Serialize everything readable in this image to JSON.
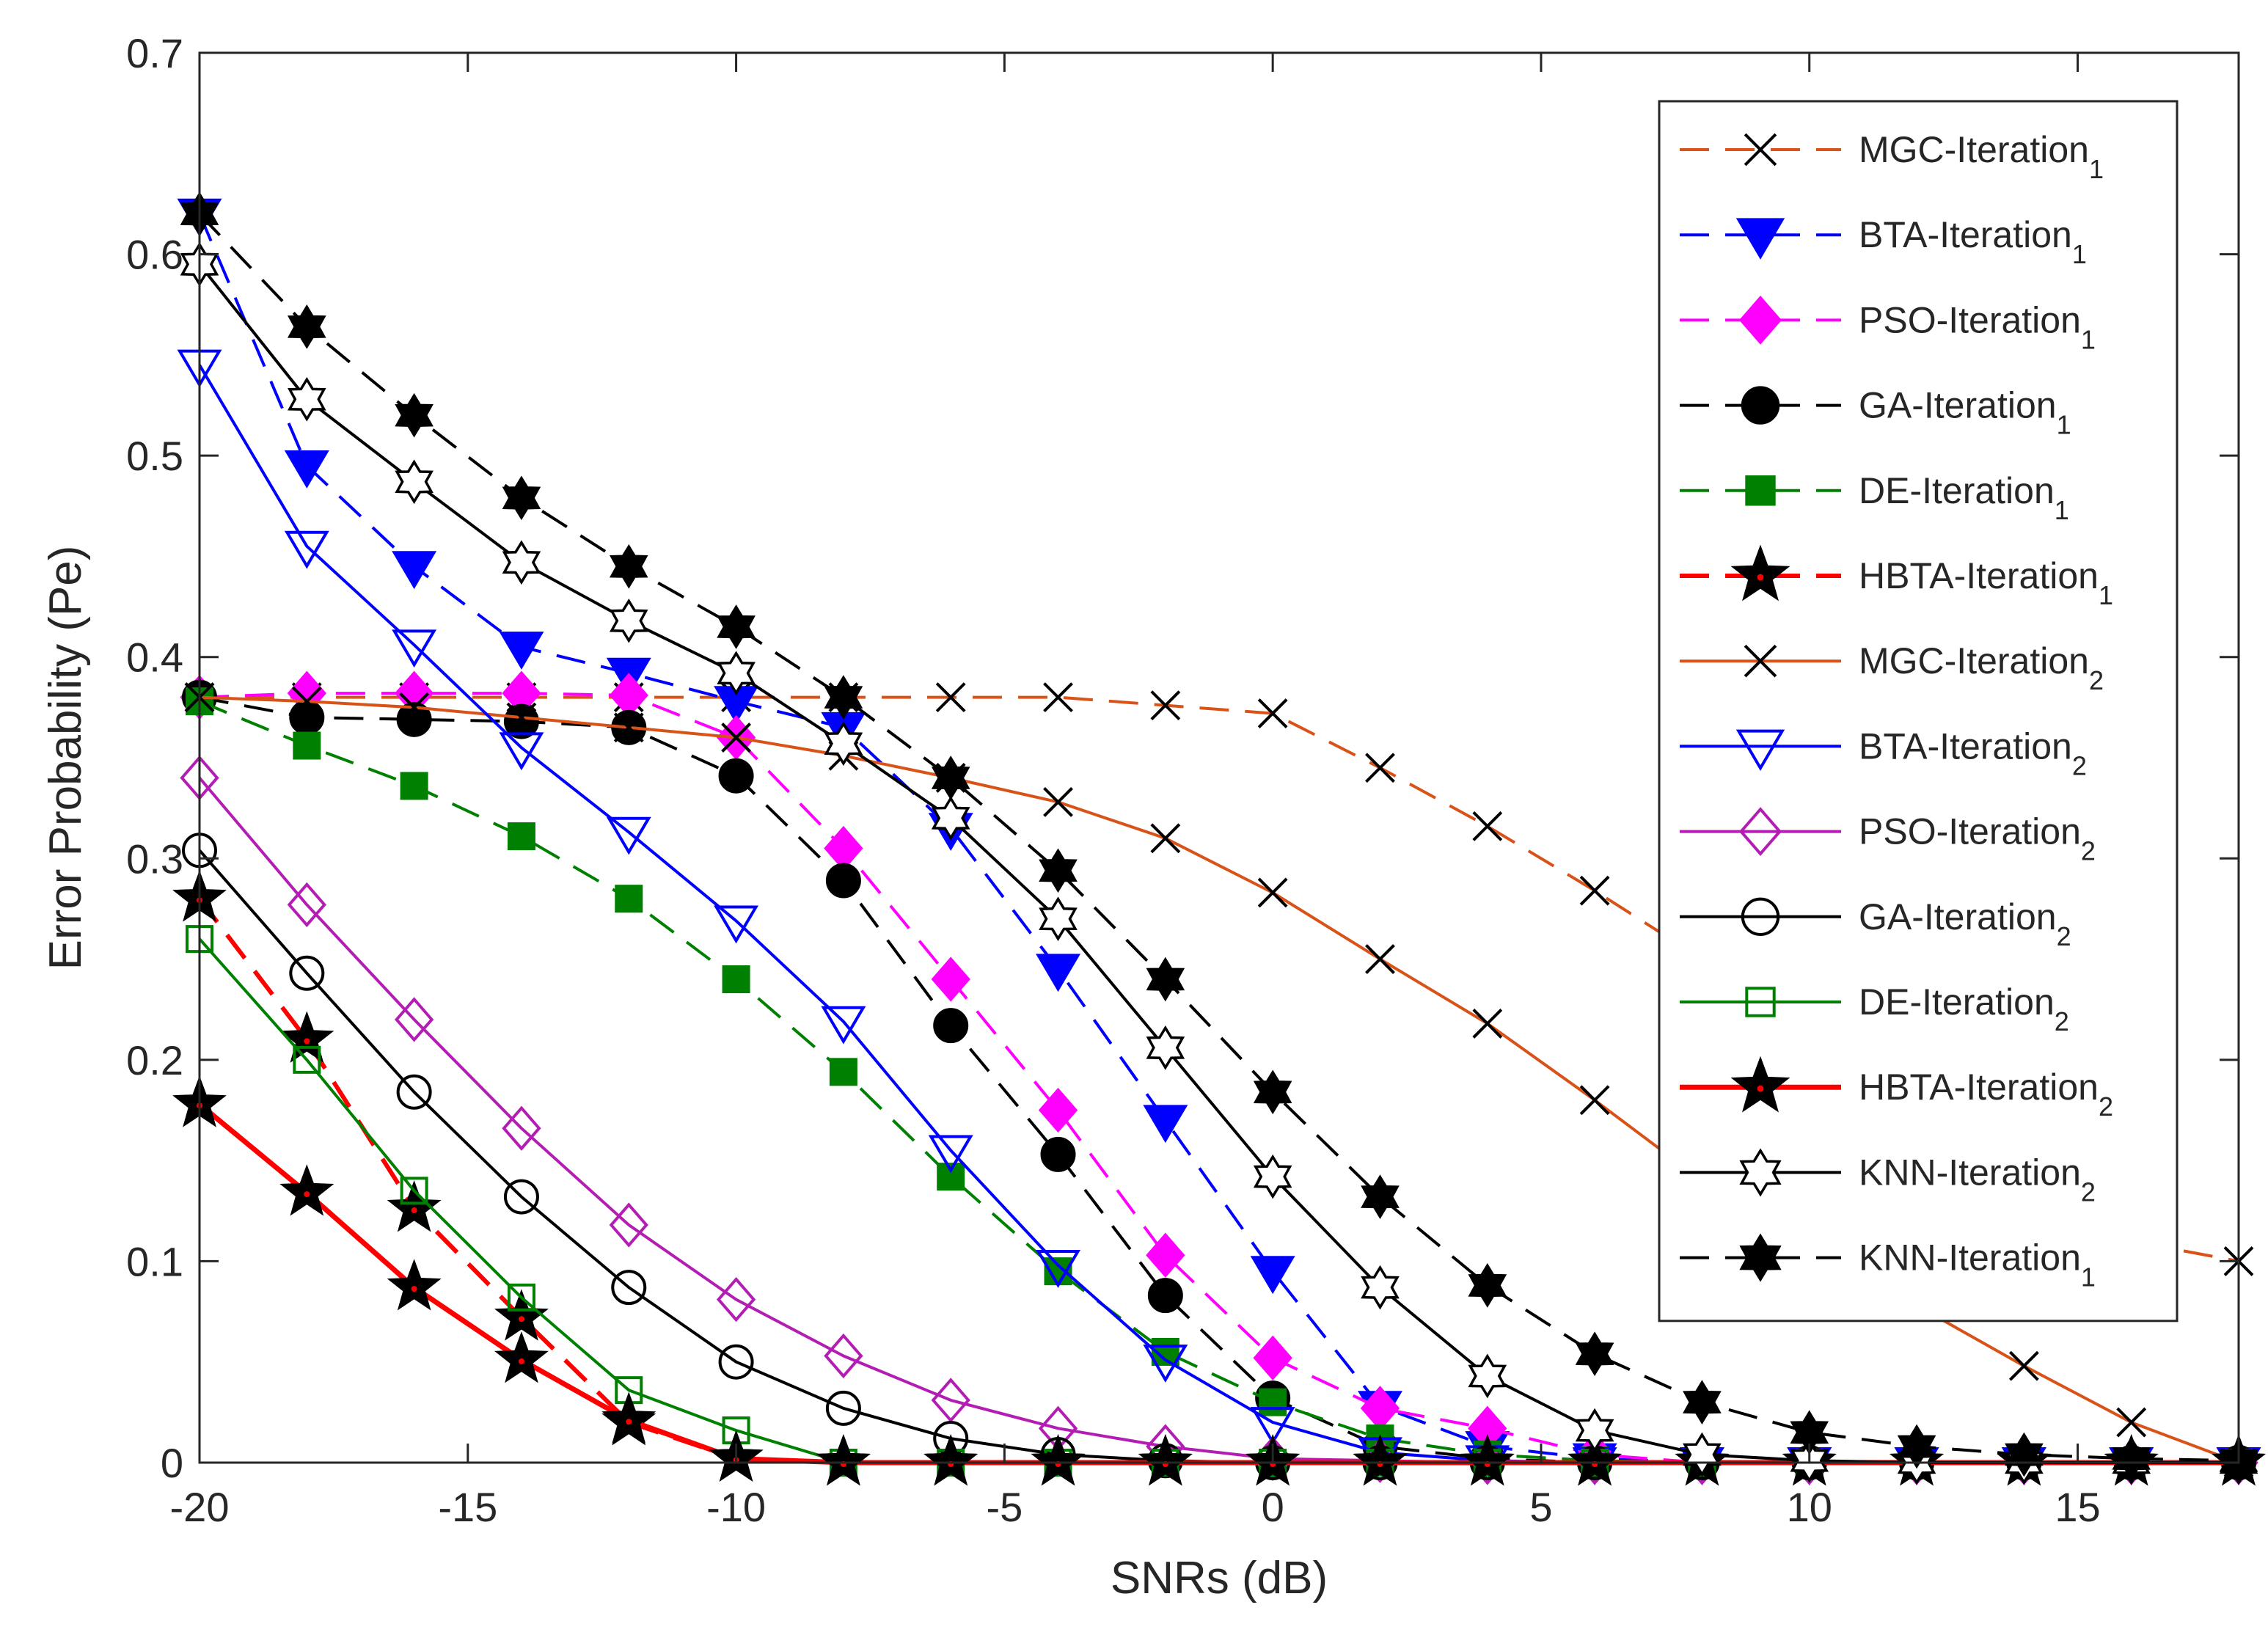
{
  "chart_data": {
    "type": "line",
    "xlabel": "SNRs (dB)",
    "ylabel": "Error Probability (Pe)",
    "xlim": [
      -20,
      18
    ],
    "ylim": [
      0,
      0.7
    ],
    "xticks": [
      -20,
      -15,
      -10,
      -5,
      0,
      5,
      10,
      15
    ],
    "xtick_labels": [
      "-20",
      "-15",
      "-10",
      "-5",
      "0",
      "5",
      "10",
      "15"
    ],
    "yticks": [
      0,
      0.1,
      0.2,
      0.3,
      0.4,
      0.5,
      0.6,
      0.7
    ],
    "ytick_labels": [
      "0",
      "0.1",
      "0.2",
      "0.3",
      "0.4",
      "0.5",
      "0.6",
      "0.7"
    ],
    "grid": false,
    "legend_position": "top-right",
    "x": [
      -20,
      -18,
      -16,
      -14,
      -12,
      -10,
      -8,
      -6,
      -4,
      -2,
      0,
      2,
      4,
      6,
      8,
      10,
      12,
      14,
      16,
      18
    ],
    "series": [
      {
        "name": "MGC-Iteration",
        "sub": "1",
        "color": "#d95319",
        "dash": "dashed",
        "marker": "x",
        "filled": false,
        "width": 4,
        "values": [
          0.38,
          0.38,
          0.38,
          0.38,
          0.38,
          0.38,
          0.38,
          0.38,
          0.38,
          0.376,
          0.372,
          0.345,
          0.316,
          0.284,
          0.25,
          0.21,
          0.17,
          0.135,
          0.11,
          0.1
        ]
      },
      {
        "name": "BTA-Iteration",
        "sub": "1",
        "color": "#0000ff",
        "dash": "dashed",
        "marker": "triangle-down",
        "filled": true,
        "width": 4,
        "values": [
          0.62,
          0.495,
          0.445,
          0.405,
          0.392,
          0.378,
          0.365,
          0.315,
          0.245,
          0.17,
          0.095,
          0.028,
          0.008,
          0.002,
          0.0,
          0.0,
          0.0,
          0.0,
          0.0,
          0.0
        ]
      },
      {
        "name": "PSO-Iteration",
        "sub": "1",
        "color": "#ff00ff",
        "dash": "dashed",
        "marker": "diamond",
        "filled": true,
        "width": 4,
        "values": [
          0.38,
          0.382,
          0.382,
          0.382,
          0.381,
          0.36,
          0.305,
          0.24,
          0.175,
          0.103,
          0.052,
          0.027,
          0.017,
          0.004,
          0.0,
          0.0,
          0.0,
          0.0,
          0.0,
          0.0
        ]
      },
      {
        "name": "GA-Iteration",
        "sub": "1",
        "color": "#000000",
        "dash": "dashed",
        "marker": "circle",
        "filled": true,
        "width": 4,
        "values": [
          0.38,
          0.37,
          0.369,
          0.368,
          0.365,
          0.341,
          0.289,
          0.217,
          0.153,
          0.083,
          0.032,
          0.008,
          0.002,
          0.0,
          0.0,
          0.0,
          0.0,
          0.0,
          0.0,
          0.0
        ]
      },
      {
        "name": "DE-Iteration",
        "sub": "1",
        "color": "#008000",
        "dash": "dashed",
        "marker": "square",
        "filled": true,
        "width": 4,
        "values": [
          0.378,
          0.356,
          0.336,
          0.311,
          0.28,
          0.24,
          0.194,
          0.142,
          0.095,
          0.055,
          0.03,
          0.012,
          0.004,
          0.001,
          0.0,
          0.0,
          0.0,
          0.0,
          0.0,
          0.0
        ]
      },
      {
        "name": "HBTA-Iteration",
        "sub": "1",
        "color": "#ff0000",
        "dash": "dashed",
        "marker": "star",
        "filled": "black",
        "width": 6,
        "values": [
          0.28,
          0.21,
          0.126,
          0.072,
          0.02,
          0.002,
          0.0,
          0.0,
          0.0,
          0.0,
          0.0,
          0.0,
          0.0,
          0.0,
          0.0,
          0.0,
          0.0,
          0.0,
          0.0,
          0.0
        ]
      },
      {
        "name": "MGC-Iteration",
        "sub": "2",
        "color": "#d95319",
        "dash": "solid",
        "marker": "x",
        "filled": false,
        "width": 4,
        "values": [
          0.38,
          0.378,
          0.375,
          0.37,
          0.365,
          0.36,
          0.351,
          0.34,
          0.328,
          0.31,
          0.283,
          0.25,
          0.218,
          0.18,
          0.14,
          0.11,
          0.078,
          0.048,
          0.02,
          0.0
        ]
      },
      {
        "name": "BTA-Iteration",
        "sub": "2",
        "color": "#0000ff",
        "dash": "solid",
        "marker": "triangle-down",
        "filled": false,
        "width": 4,
        "values": [
          0.545,
          0.455,
          0.406,
          0.355,
          0.313,
          0.269,
          0.219,
          0.155,
          0.098,
          0.051,
          0.02,
          0.005,
          0.001,
          0.0,
          0.0,
          0.0,
          0.0,
          0.0,
          0.0,
          0.0
        ]
      },
      {
        "name": "PSO-Iteration",
        "sub": "2",
        "color": "#b31db3",
        "dash": "solid",
        "marker": "diamond",
        "filled": false,
        "width": 4,
        "values": [
          0.34,
          0.277,
          0.22,
          0.166,
          0.118,
          0.081,
          0.053,
          0.031,
          0.017,
          0.008,
          0.002,
          0.001,
          0.0,
          0.0,
          0.0,
          0.0,
          0.0,
          0.0,
          0.0,
          0.0
        ]
      },
      {
        "name": "GA-Iteration",
        "sub": "2",
        "color": "#000000",
        "dash": "solid",
        "marker": "circle",
        "filled": false,
        "width": 4,
        "values": [
          0.304,
          0.243,
          0.184,
          0.132,
          0.087,
          0.05,
          0.027,
          0.012,
          0.004,
          0.001,
          0.0,
          0.0,
          0.0,
          0.0,
          0.0,
          0.0,
          0.0,
          0.0,
          0.0,
          0.0
        ]
      },
      {
        "name": "DE-Iteration",
        "sub": "2",
        "color": "#008000",
        "dash": "solid",
        "marker": "square",
        "filled": false,
        "width": 4,
        "values": [
          0.26,
          0.2,
          0.135,
          0.082,
          0.036,
          0.016,
          0.0,
          0.0,
          0.0,
          0.0,
          0.0,
          0.0,
          0.0,
          0.0,
          0.0,
          0.0,
          0.0,
          0.0,
          0.0,
          0.0
        ]
      },
      {
        "name": "HBTA-Iteration",
        "sub": "2",
        "color": "#ff0000",
        "dash": "solid",
        "marker": "star",
        "filled": "black",
        "width": 7,
        "values": [
          0.178,
          0.134,
          0.087,
          0.051,
          0.021,
          0.002,
          0.0,
          0.0,
          0.0,
          0.0,
          0.0,
          0.0,
          0.0,
          0.0,
          0.0,
          0.0,
          0.0,
          0.0,
          0.0,
          0.0
        ]
      },
      {
        "name": "KNN-Iteration",
        "sub": "2",
        "color": "#000000",
        "dash": "solid",
        "marker": "hexagram",
        "filled": false,
        "width": 4,
        "values": [
          0.595,
          0.528,
          0.487,
          0.447,
          0.418,
          0.392,
          0.357,
          0.32,
          0.27,
          0.206,
          0.142,
          0.087,
          0.043,
          0.016,
          0.004,
          0.001,
          0.0,
          0.0,
          0.0,
          0.0
        ]
      },
      {
        "name": "KNN-Iteration",
        "sub": "1",
        "color": "#000000",
        "dash": "dashed",
        "marker": "hexagram",
        "filled": true,
        "width": 4,
        "values": [
          0.62,
          0.564,
          0.52,
          0.479,
          0.445,
          0.415,
          0.38,
          0.34,
          0.294,
          0.24,
          0.184,
          0.132,
          0.088,
          0.054,
          0.03,
          0.015,
          0.008,
          0.004,
          0.002,
          0.001
        ]
      }
    ]
  }
}
